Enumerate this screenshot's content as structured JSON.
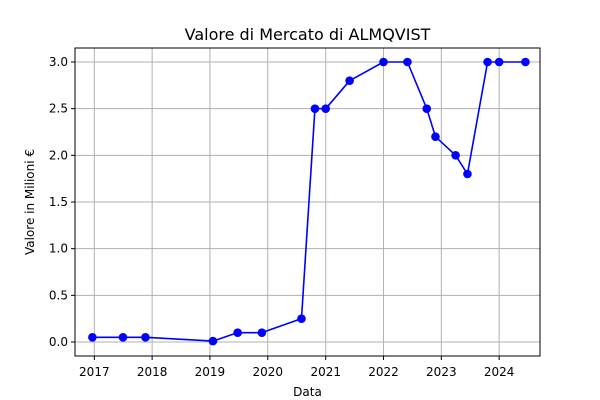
{
  "chart_data": {
    "type": "line",
    "title": "Valore di Mercato di ALMQVIST",
    "xlabel": "Data",
    "ylabel": "Valore in Milioni €",
    "x_tick_labels": [
      "2017",
      "2018",
      "2019",
      "2020",
      "2021",
      "2022",
      "2023",
      "2024"
    ],
    "y_tick_labels": [
      "0.0",
      "0.5",
      "1.0",
      "1.5",
      "2.0",
      "2.5",
      "3.0"
    ],
    "x_range": [
      "2016-09-01",
      "2024-09-15"
    ],
    "ylim": [
      -0.15,
      3.15
    ],
    "grid": true,
    "legend": "none",
    "series": [
      {
        "color": "#0000ff",
        "marker": "circle",
        "points": [
          {
            "x": "2016-12-20",
            "y": 0.05
          },
          {
            "x": "2017-07-01",
            "y": 0.05
          },
          {
            "x": "2017-11-20",
            "y": 0.05
          },
          {
            "x": "2019-01-20",
            "y": 0.01
          },
          {
            "x": "2019-06-25",
            "y": 0.1
          },
          {
            "x": "2019-11-25",
            "y": 0.1
          },
          {
            "x": "2020-08-01",
            "y": 0.25
          },
          {
            "x": "2020-10-25",
            "y": 2.5
          },
          {
            "x": "2021-01-01",
            "y": 2.5
          },
          {
            "x": "2021-06-01",
            "y": 2.8
          },
          {
            "x": "2022-01-01",
            "y": 3.0
          },
          {
            "x": "2022-06-01",
            "y": 3.0
          },
          {
            "x": "2022-10-01",
            "y": 2.5
          },
          {
            "x": "2022-11-25",
            "y": 2.2
          },
          {
            "x": "2023-04-01",
            "y": 2.0
          },
          {
            "x": "2023-06-15",
            "y": 1.8
          },
          {
            "x": "2023-10-20",
            "y": 3.0
          },
          {
            "x": "2024-01-01",
            "y": 3.0
          },
          {
            "x": "2024-06-15",
            "y": 3.0
          }
        ]
      }
    ]
  }
}
